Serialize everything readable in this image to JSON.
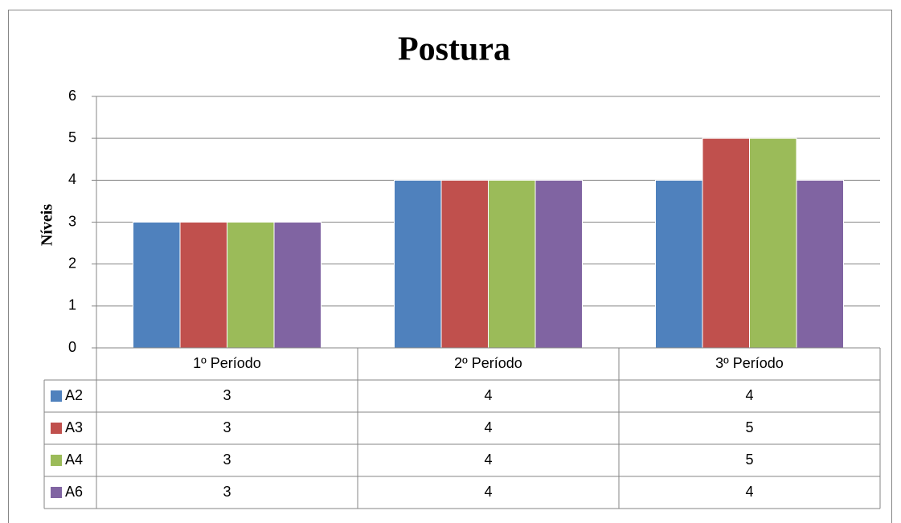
{
  "chart_data": {
    "type": "bar",
    "title": "Postura",
    "ylabel": "Níveis",
    "categories": [
      "1º Período",
      "2º Período",
      "3º Período"
    ],
    "series": [
      {
        "name": "A2",
        "color": "#4f81bd",
        "values": [
          3,
          4,
          4
        ]
      },
      {
        "name": "A3",
        "color": "#c0504d",
        "values": [
          3,
          4,
          5
        ]
      },
      {
        "name": "A4",
        "color": "#9bbb59",
        "values": [
          3,
          4,
          5
        ]
      },
      {
        "name": "A6",
        "color": "#8064a2",
        "values": [
          3,
          4,
          4
        ]
      }
    ],
    "ylim": [
      0,
      6
    ],
    "yticks": [
      0,
      1,
      2,
      3,
      4,
      5,
      6
    ],
    "grid": true,
    "data_table": true
  }
}
